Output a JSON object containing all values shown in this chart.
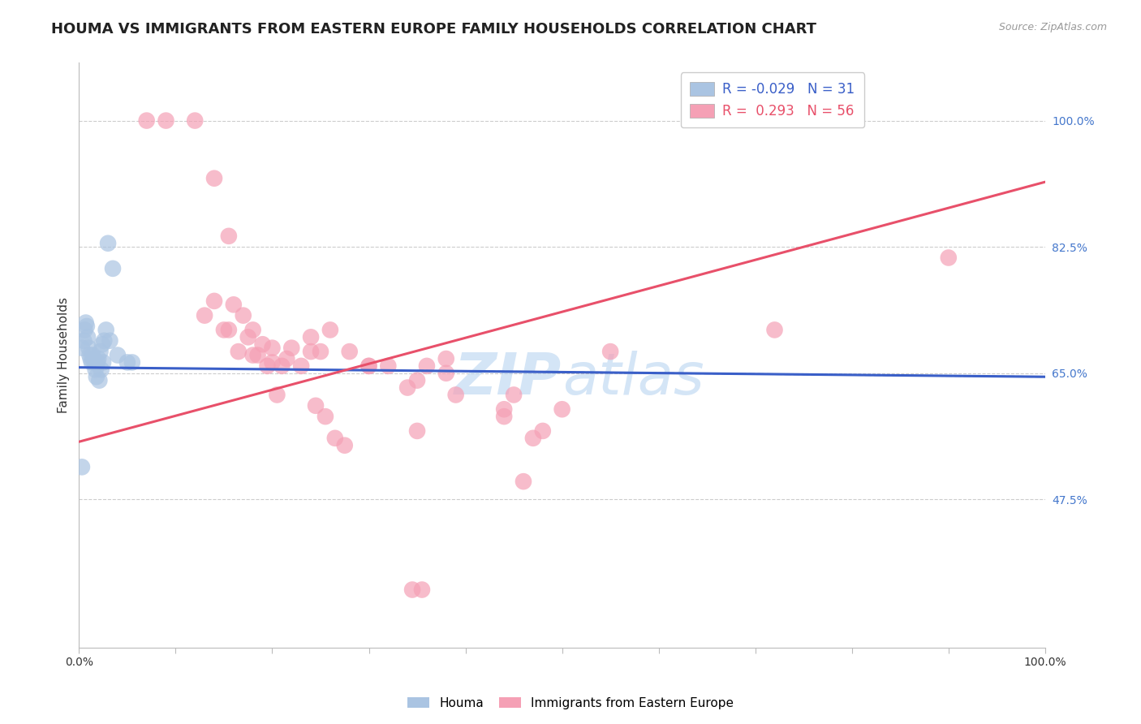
{
  "title": "HOUMA VS IMMIGRANTS FROM EASTERN EUROPE FAMILY HOUSEHOLDS CORRELATION CHART",
  "source": "Source: ZipAtlas.com",
  "ylabel": "Family Households",
  "ytick_labels": [
    "100.0%",
    "82.5%",
    "65.0%",
    "47.5%"
  ],
  "ytick_values": [
    1.0,
    0.825,
    0.65,
    0.475
  ],
  "xmin": 0.0,
  "xmax": 1.0,
  "ymin": 0.27,
  "ymax": 1.08,
  "houma_R": -0.029,
  "houma_N": 31,
  "eastern_europe_R": 0.293,
  "eastern_europe_N": 56,
  "houma_color": "#aac4e2",
  "eastern_europe_color": "#f5a0b5",
  "houma_line_color": "#3a5fc8",
  "eastern_europe_line_color": "#e8506a",
  "watermark_color": "#b8d4f0",
  "background_color": "#ffffff",
  "grid_color": "#cccccc",
  "houma_x": [
    0.003,
    0.005,
    0.006,
    0.007,
    0.008,
    0.009,
    0.01,
    0.011,
    0.012,
    0.013,
    0.014,
    0.015,
    0.016,
    0.017,
    0.018,
    0.019,
    0.02,
    0.021,
    0.022,
    0.023,
    0.024,
    0.025,
    0.026,
    0.028,
    0.03,
    0.032,
    0.035,
    0.04,
    0.05,
    0.055,
    0.003
  ],
  "houma_y": [
    0.685,
    0.695,
    0.71,
    0.72,
    0.715,
    0.7,
    0.685,
    0.675,
    0.67,
    0.665,
    0.675,
    0.67,
    0.665,
    0.655,
    0.645,
    0.665,
    0.67,
    0.64,
    0.68,
    0.655,
    0.69,
    0.665,
    0.695,
    0.71,
    0.83,
    0.695,
    0.795,
    0.675,
    0.665,
    0.665,
    0.52
  ],
  "eastern_europe_x": [
    0.07,
    0.09,
    0.12,
    0.14,
    0.155,
    0.16,
    0.17,
    0.18,
    0.19,
    0.2,
    0.21,
    0.22,
    0.23,
    0.24,
    0.25,
    0.26,
    0.28,
    0.3,
    0.32,
    0.34,
    0.35,
    0.36,
    0.38,
    0.39,
    0.44,
    0.45,
    0.46,
    0.55,
    0.14,
    0.155,
    0.165,
    0.175,
    0.185,
    0.195,
    0.205,
    0.215,
    0.245,
    0.255,
    0.265,
    0.275,
    0.345,
    0.355,
    0.38,
    0.44,
    0.5,
    0.72,
    0.9,
    0.13,
    0.15,
    0.18,
    0.2,
    0.24,
    0.3,
    0.35,
    0.47,
    0.48
  ],
  "eastern_europe_y": [
    1.0,
    1.0,
    1.0,
    0.92,
    0.84,
    0.745,
    0.73,
    0.71,
    0.69,
    0.685,
    0.66,
    0.685,
    0.66,
    0.7,
    0.68,
    0.71,
    0.68,
    0.66,
    0.66,
    0.63,
    0.64,
    0.66,
    0.67,
    0.62,
    0.59,
    0.62,
    0.5,
    0.68,
    0.75,
    0.71,
    0.68,
    0.7,
    0.675,
    0.66,
    0.62,
    0.67,
    0.605,
    0.59,
    0.56,
    0.55,
    0.35,
    0.35,
    0.65,
    0.6,
    0.6,
    0.71,
    0.81,
    0.73,
    0.71,
    0.675,
    0.665,
    0.68,
    0.66,
    0.57,
    0.56,
    0.57
  ],
  "title_fontsize": 13,
  "axis_label_fontsize": 11,
  "tick_fontsize": 10,
  "legend_fontsize": 12,
  "source_fontsize": 9,
  "houma_line_y0": 0.658,
  "houma_line_y1": 0.645,
  "eastern_europe_line_y0": 0.555,
  "eastern_europe_line_y1": 0.915
}
